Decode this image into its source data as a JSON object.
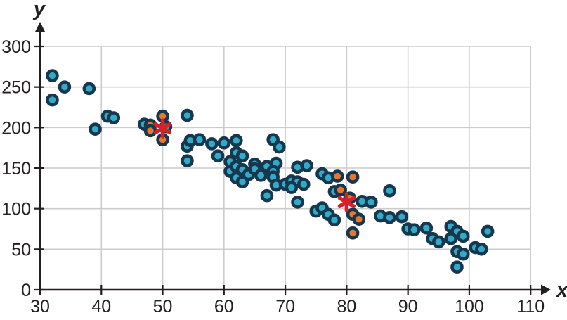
{
  "figure": {
    "xlabel": "x",
    "ylabel": "y"
  },
  "chart_data": {
    "type": "scatter",
    "title": "",
    "xlabel": "x",
    "ylabel": "y",
    "xlim": [
      30,
      110
    ],
    "ylim": [
      0,
      300
    ],
    "x_ticks": [
      30,
      40,
      50,
      60,
      70,
      80,
      90,
      100,
      110
    ],
    "y_ticks": [
      0,
      50,
      100,
      150,
      200,
      250,
      300
    ],
    "grid": true,
    "legend": "none",
    "colors": {
      "point_fill": "#31ABC8",
      "highlight_fill": "#E8762F",
      "marker_outline": "#16374D",
      "star_color": "#D2232A",
      "grid_color": "#CCCCCC",
      "axis_color": "#231F20"
    },
    "series": [
      {
        "name": "points",
        "marker": "circle",
        "color": "#31ABC8",
        "points": [
          [
            32,
            264
          ],
          [
            34,
            250
          ],
          [
            32,
            234
          ],
          [
            38,
            248
          ],
          [
            39,
            198
          ],
          [
            41,
            214
          ],
          [
            42,
            212
          ],
          [
            47,
            204
          ],
          [
            50.5,
            201
          ],
          [
            54,
            215
          ],
          [
            54,
            177
          ],
          [
            54.5,
            184
          ],
          [
            56,
            185
          ],
          [
            54,
            159
          ],
          [
            58,
            180
          ],
          [
            60,
            181
          ],
          [
            59,
            165
          ],
          [
            62,
            184
          ],
          [
            62,
            169
          ],
          [
            63,
            165
          ],
          [
            61,
            158
          ],
          [
            61,
            146
          ],
          [
            62,
            152
          ],
          [
            63,
            148
          ],
          [
            62,
            138
          ],
          [
            63,
            133
          ],
          [
            64,
            142
          ],
          [
            65,
            155
          ],
          [
            65,
            149
          ],
          [
            66,
            141
          ],
          [
            67,
            152
          ],
          [
            68.5,
            156
          ],
          [
            68,
            146
          ],
          [
            68,
            139
          ],
          [
            68.5,
            129
          ],
          [
            67,
            116
          ],
          [
            68,
            185
          ],
          [
            69,
            176
          ],
          [
            70,
            130
          ],
          [
            71,
            134
          ],
          [
            72,
            133
          ],
          [
            73,
            130
          ],
          [
            71,
            126
          ],
          [
            72,
            151
          ],
          [
            73.5,
            153
          ],
          [
            76,
            143
          ],
          [
            77,
            138
          ],
          [
            78,
            121
          ],
          [
            72,
            108
          ],
          [
            75,
            97
          ],
          [
            76,
            101
          ],
          [
            77,
            93
          ],
          [
            78,
            86
          ],
          [
            82.5,
            109
          ],
          [
            84,
            108
          ],
          [
            85.5,
            91
          ],
          [
            87,
            89
          ],
          [
            89,
            90
          ],
          [
            87,
            122
          ],
          [
            90,
            75
          ],
          [
            91,
            74
          ],
          [
            93,
            76
          ],
          [
            94,
            63
          ],
          [
            95,
            59
          ],
          [
            97,
            78
          ],
          [
            97,
            63
          ],
          [
            98,
            72
          ],
          [
            99,
            66
          ],
          [
            98,
            47
          ],
          [
            99,
            44
          ],
          [
            98,
            28
          ],
          [
            101,
            52
          ],
          [
            102,
            50
          ],
          [
            103,
            72
          ]
        ]
      },
      {
        "name": "highlighted-points",
        "marker": "circle",
        "color": "#E8762F",
        "points": [
          [
            50,
            214
          ],
          [
            48,
            203
          ],
          [
            48,
            196
          ],
          [
            50,
            185
          ],
          [
            78.5,
            140
          ],
          [
            81,
            139
          ],
          [
            79,
            123
          ],
          [
            80.5,
            113
          ],
          [
            81,
            93
          ],
          [
            82,
            87
          ],
          [
            81,
            70
          ]
        ]
      },
      {
        "name": "star-markers",
        "marker": "asterisk",
        "color": "#D2232A",
        "points": [
          [
            50,
            199
          ],
          [
            80,
            108
          ]
        ]
      }
    ]
  }
}
